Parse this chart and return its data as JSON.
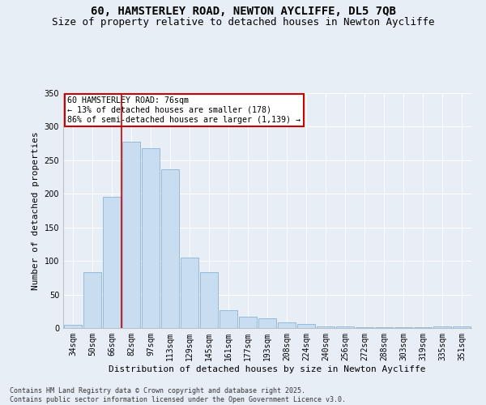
{
  "title": "60, HAMSTERLEY ROAD, NEWTON AYCLIFFE, DL5 7QB",
  "subtitle": "Size of property relative to detached houses in Newton Aycliffe",
  "xlabel": "Distribution of detached houses by size in Newton Aycliffe",
  "ylabel": "Number of detached properties",
  "categories": [
    "34sqm",
    "50sqm",
    "66sqm",
    "82sqm",
    "97sqm",
    "113sqm",
    "129sqm",
    "145sqm",
    "161sqm",
    "177sqm",
    "193sqm",
    "208sqm",
    "224sqm",
    "240sqm",
    "256sqm",
    "272sqm",
    "288sqm",
    "303sqm",
    "319sqm",
    "335sqm",
    "351sqm"
  ],
  "values": [
    5,
    83,
    196,
    278,
    268,
    237,
    105,
    83,
    26,
    17,
    14,
    9,
    6,
    3,
    2,
    1,
    1,
    1,
    1,
    2,
    2
  ],
  "bar_color": "#c9ddf0",
  "bar_edge_color": "#8ab4d8",
  "vline_color": "#cc0000",
  "annotation_text": "60 HAMSTERLEY ROAD: 76sqm\n← 13% of detached houses are smaller (178)\n86% of semi-detached houses are larger (1,139) →",
  "annotation_box_color": "white",
  "annotation_box_edge": "#cc0000",
  "ylim": [
    0,
    350
  ],
  "yticks": [
    0,
    50,
    100,
    150,
    200,
    250,
    300,
    350
  ],
  "footer": "Contains HM Land Registry data © Crown copyright and database right 2025.\nContains public sector information licensed under the Open Government Licence v3.0.",
  "bg_color": "#e8eef6",
  "grid_color": "#ffffff",
  "title_fontsize": 10,
  "subtitle_fontsize": 9,
  "axis_label_fontsize": 8,
  "tick_fontsize": 7,
  "footer_fontsize": 6
}
